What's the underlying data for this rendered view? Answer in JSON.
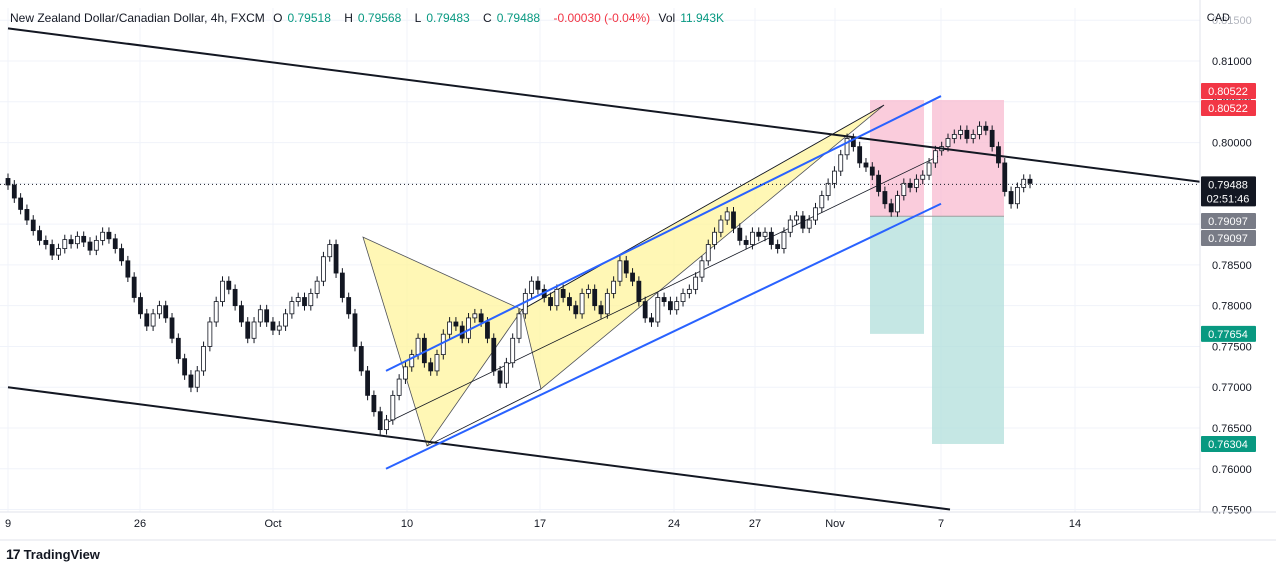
{
  "header": {
    "symbol_title": "New Zealand Dollar/Canadian Dollar, 4h, FXCM",
    "open_label": "O",
    "open": "0.79518",
    "high_label": "H",
    "high": "0.79568",
    "low_label": "L",
    "low": "0.79483",
    "close_label": "C",
    "close": "0.79488",
    "change": "-0.00030 (-0.04%)",
    "volume_label": "Vol",
    "volume": "11.943K"
  },
  "axis_currency": "CAD",
  "branding": {
    "logo_text": "TradingView",
    "logo_mark": "17"
  },
  "colors": {
    "up": "#089981",
    "down": "#f23645",
    "candle_body": "#ffffff",
    "candle_outline": "#131722",
    "channel": "#131722",
    "trend_blue": "#2962ff",
    "harmonic_fill": "#fff59d",
    "stop_zone": "#f8bbd0",
    "target_zone": "#b2dfdb"
  },
  "price_labels": [
    {
      "value": 0.80522,
      "text": "0.80522",
      "color": "#f23645"
    },
    {
      "value": 0.80522,
      "text": "0.80522",
      "color": "#f23645"
    },
    {
      "value": 0.79488,
      "text": "0.79488",
      "sub": "02:51:46",
      "color": "#131722"
    },
    {
      "value": 0.79097,
      "text": "0.79097",
      "color": "#787b86"
    },
    {
      "value": 0.79097,
      "text": "0.79097",
      "color": "#787b86"
    },
    {
      "value": 0.77654,
      "text": "0.77654",
      "color": "#089981"
    },
    {
      "value": 0.76304,
      "text": "0.76304",
      "color": "#089981"
    }
  ],
  "chart_data": {
    "type": "candlestick",
    "title": "New Zealand Dollar/Canadian Dollar, 4h, FXCM",
    "x_ticks": [
      "9",
      "26",
      "Oct",
      "10",
      "17",
      "24",
      "27",
      "Nov",
      "7",
      "14"
    ],
    "y_ticks": [
      "0.81500",
      "0.81000",
      "0.80500",
      "0.80000",
      "0.79500",
      "0.79000",
      "0.78500",
      "0.78000",
      "0.77500",
      "0.77000",
      "0.76500",
      "0.76000",
      "0.75500"
    ],
    "ylim": [
      0.7547,
      0.8165
    ],
    "last_price": 0.79488,
    "series": [
      {
        "name": "NZDCAD",
        "values": [
          0.7948,
          0.7932,
          0.7918,
          0.7905,
          0.7892,
          0.788,
          0.7875,
          0.7862,
          0.787,
          0.7881,
          0.7876,
          0.7885,
          0.7878,
          0.7868,
          0.788,
          0.789,
          0.7882,
          0.787,
          0.7855,
          0.7835,
          0.781,
          0.779,
          0.7775,
          0.779,
          0.78,
          0.7785,
          0.776,
          0.7735,
          0.7715,
          0.77,
          0.772,
          0.775,
          0.778,
          0.7805,
          0.783,
          0.782,
          0.78,
          0.778,
          0.776,
          0.778,
          0.7795,
          0.778,
          0.777,
          0.7775,
          0.779,
          0.7805,
          0.781,
          0.78,
          0.7815,
          0.783,
          0.786,
          0.7875,
          0.784,
          0.781,
          0.779,
          0.775,
          0.772,
          0.769,
          0.767,
          0.7648,
          0.766,
          0.769,
          0.771,
          0.7725,
          0.774,
          0.776,
          0.773,
          0.772,
          0.774,
          0.7765,
          0.778,
          0.7775,
          0.776,
          0.7785,
          0.779,
          0.778,
          0.776,
          0.772,
          0.7705,
          0.773,
          0.776,
          0.779,
          0.7815,
          0.783,
          0.782,
          0.781,
          0.78,
          0.782,
          0.781,
          0.78,
          0.779,
          0.7815,
          0.782,
          0.78,
          0.779,
          0.7815,
          0.783,
          0.7855,
          0.784,
          0.783,
          0.7805,
          0.7785,
          0.778,
          0.781,
          0.7805,
          0.7795,
          0.7805,
          0.7815,
          0.782,
          0.7835,
          0.7855,
          0.7875,
          0.789,
          0.7905,
          0.7915,
          0.7895,
          0.788,
          0.7875,
          0.789,
          0.7885,
          0.789,
          0.7875,
          0.787,
          0.789,
          0.7905,
          0.791,
          0.7895,
          0.7905,
          0.792,
          0.7935,
          0.795,
          0.7965,
          0.7985,
          0.8005,
          0.7995,
          0.7975,
          0.797,
          0.796,
          0.794,
          0.7925,
          0.7915,
          0.7935,
          0.795,
          0.7945,
          0.7955,
          0.796,
          0.7975,
          0.799,
          0.7995,
          0.8005,
          0.801,
          0.8015,
          0.8005,
          0.801,
          0.802,
          0.8015,
          0.7995,
          0.7975,
          0.794,
          0.7925,
          0.7945,
          0.7955,
          0.795
        ]
      }
    ],
    "channel_lines": [
      {
        "name": "upper-channel",
        "from": [
          "9",
          0.814
        ],
        "to": [
          "14+",
          0.7952
        ]
      },
      {
        "name": "lower-channel",
        "from": [
          "9",
          0.77
        ],
        "to": [
          "Nov 7",
          0.755
        ]
      }
    ],
    "annotations": [
      {
        "type": "harmonic-pattern",
        "points": [
          0.7884,
          0.7628,
          0.7795,
          0.7698,
          0.8046
        ]
      },
      {
        "type": "stop-zone",
        "top": 0.80522,
        "bottom": 0.79097
      },
      {
        "type": "target-zone-1",
        "top": 0.79097,
        "bottom": 0.77654
      },
      {
        "type": "target-zone-2",
        "top": 0.79097,
        "bottom": 0.76304
      }
    ],
    "grid": true,
    "legend": "top-left"
  }
}
